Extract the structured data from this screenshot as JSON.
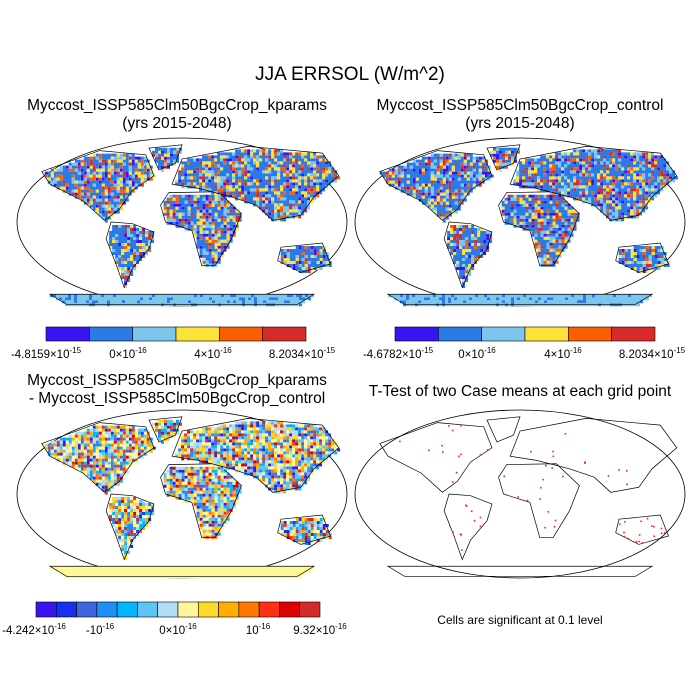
{
  "figure": {
    "title": "JJA ERRSOL (W/m^2)"
  },
  "panels": [
    {
      "title_line1": "Myccost_ISSP585Clm50BgcCrop_kparams",
      "title_line2": "(yrs 2015-2048)",
      "colorbar": {
        "colors": [
          "#3a13f2",
          "#2a7ae8",
          "#7cc6ee",
          "#fde23a",
          "#fd5f00",
          "#d92a2a"
        ],
        "labels": [
          {
            "m": "-4.8159",
            "e": "-15"
          },
          {
            "m": "0",
            "e": "-16"
          },
          {
            "m": "4",
            "e": "-16"
          },
          {
            "m": "8.2034",
            "e": "-15"
          }
        ]
      }
    },
    {
      "title_line1": "Myccost_ISSP585Clm50BgcCrop_control",
      "title_line2": "(yrs 2015-2048)",
      "colorbar": {
        "colors": [
          "#3a13f2",
          "#2a7ae8",
          "#7cc6ee",
          "#fde23a",
          "#fd5f00",
          "#d92a2a"
        ],
        "labels": [
          {
            "m": "-4.6782",
            "e": "-15"
          },
          {
            "m": "0",
            "e": "-16"
          },
          {
            "m": "4",
            "e": "-16"
          },
          {
            "m": "8.2034",
            "e": "-15"
          }
        ]
      }
    },
    {
      "title_line1": "Myccost_ISSP585Clm50BgcCrop_kparams",
      "title_line2": "- Myccost_ISSP585Clm50BgcCrop_control",
      "colorbar": {
        "colors": [
          "#3c12ee",
          "#1530f0",
          "#3d66e0",
          "#1f8ff8",
          "#00b6ff",
          "#5ec4f4",
          "#b0dcf4",
          "#fff89a",
          "#ffd92a",
          "#ffae00",
          "#ff7800",
          "#ff3014",
          "#e00000",
          "#d42a2a"
        ],
        "labels": [
          {
            "m": "-4.242",
            "e": "-16"
          },
          {
            "m": "-10",
            "e": "-16",
            "plain": true
          },
          {
            "m": "0",
            "e": "-16"
          },
          {
            "m": "10",
            "e": "-16",
            "plain": true
          },
          {
            "m": "9.32",
            "e": "-16"
          }
        ]
      }
    },
    {
      "title_line1": "T-Test of two Case means at each grid point",
      "footer": "Cells are significant at 0.1 level",
      "marker_color": "#ff2020"
    }
  ]
}
